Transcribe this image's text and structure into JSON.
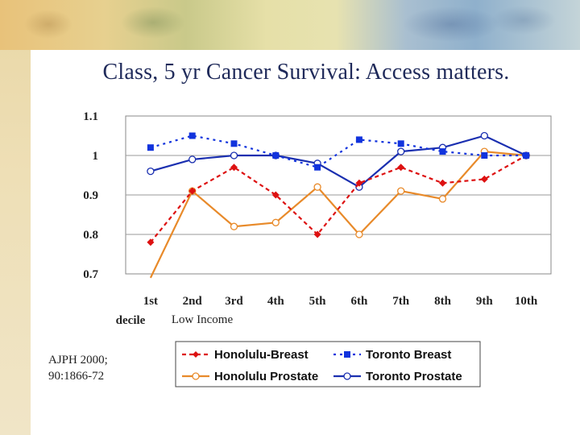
{
  "slide": {
    "title": "Class, 5 yr Cancer Survival: Access matters.",
    "citation_line1": "AJPH 2000;",
    "citation_line2": "90:1866-72"
  },
  "chart_data": {
    "type": "line",
    "title": "",
    "xlabel": "",
    "xlabel_sub": "Low Income",
    "first_category_sub": "decile",
    "ylabel": "",
    "categories": [
      "1st",
      "2nd",
      "3rd",
      "4th",
      "5th",
      "6th",
      "7th",
      "8th",
      "9th",
      "10th"
    ],
    "ylim": [
      0.7,
      1.1
    ],
    "yticks": [
      "1.1",
      "1",
      "0.9",
      "0.8",
      "0.7"
    ],
    "ytick_values": [
      1.1,
      1.0,
      0.9,
      0.8,
      0.7
    ],
    "grid": "horizontal",
    "legend_position": "bottom",
    "series": [
      {
        "name": "Honolulu-Breast",
        "color": "#dd1111",
        "dash": "dashed",
        "marker": "diamond",
        "values": [
          0.78,
          0.91,
          0.97,
          0.9,
          0.8,
          0.93,
          0.97,
          0.93,
          0.94,
          1.0
        ]
      },
      {
        "name": "Toronto Breast",
        "color": "#1133dd",
        "dash": "dotted",
        "marker": "square",
        "values": [
          1.02,
          1.05,
          1.03,
          1.0,
          0.97,
          1.04,
          1.03,
          1.01,
          1.0,
          1.0
        ]
      },
      {
        "name": "Honolulu Prostate",
        "color": "#e88a2a",
        "dash": "solid",
        "marker": "circle",
        "values": [
          0.69,
          0.91,
          0.82,
          0.83,
          0.92,
          0.8,
          0.91,
          0.89,
          1.01,
          1.0
        ]
      },
      {
        "name": "Toronto Prostate",
        "color": "#1a2fb0",
        "dash": "solid",
        "marker": "circle",
        "values": [
          0.96,
          0.99,
          1.0,
          1.0,
          0.98,
          0.92,
          1.01,
          1.02,
          1.05,
          1.0
        ]
      }
    ]
  }
}
